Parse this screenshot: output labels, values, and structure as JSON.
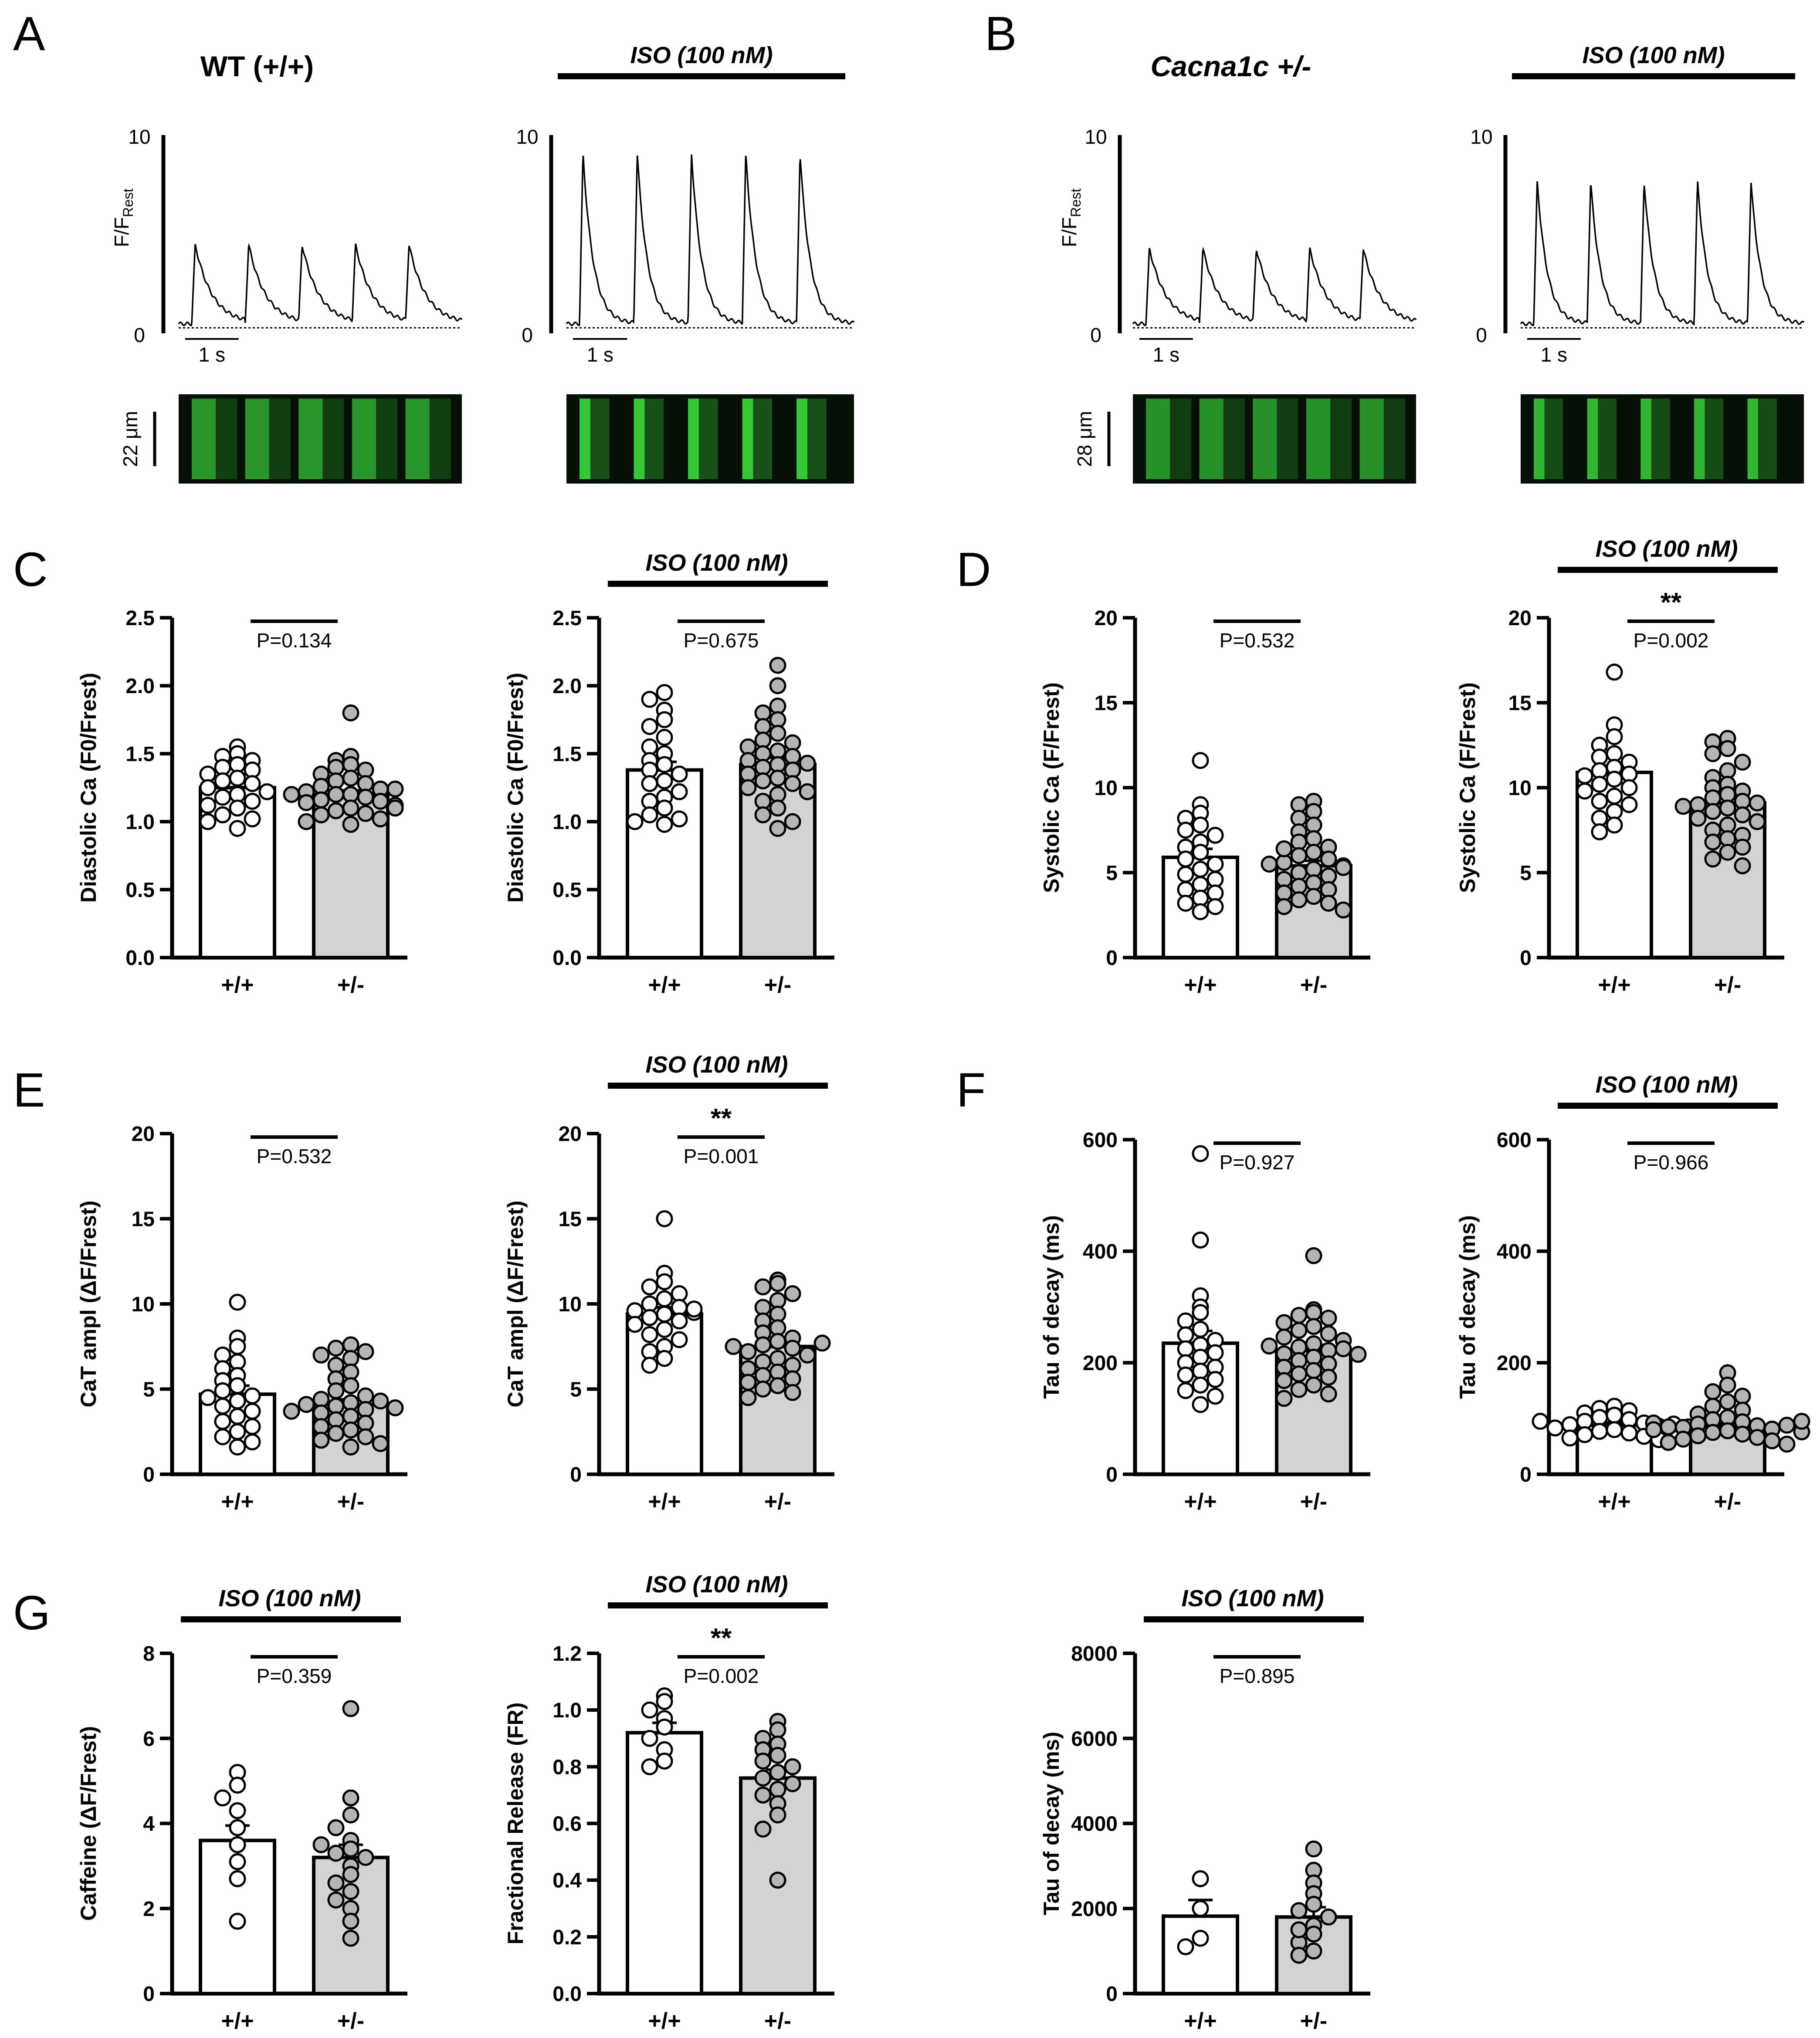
{
  "colors": {
    "wt_bar": "#ffffff",
    "het_bar": "#d3d3d3",
    "point_wt": "#ffffff",
    "point_het": "#b4b4b4",
    "stroke": "#000000",
    "linescan_bg": "#061006",
    "linescan_green": "#3cdc3c"
  },
  "iso_text": "ISO (100 nM)",
  "panel_letters": [
    "A",
    "B",
    "C",
    "D",
    "E",
    "F",
    "G"
  ],
  "traces": {
    "A": {
      "title": "WT (+/+)",
      "ylabel_main": "F/F",
      "ylabel_sub": "Rest",
      "scale_label": "1 s",
      "linescan_label": "22 μm",
      "y_ticks": [
        "10",
        "0"
      ],
      "ctrl_peak": 4.3,
      "iso_peak": 8.9,
      "ctrl_brightness": 0.55,
      "iso_brightness": 1.0
    },
    "B": {
      "title": "Cacna1c +/-",
      "ylabel_main": "F/F",
      "ylabel_sub": "Rest",
      "scale_label": "1 s",
      "linescan_label": "28 μm",
      "y_ticks": [
        "10",
        "0"
      ],
      "ctrl_peak": 4.1,
      "iso_peak": 7.5,
      "ctrl_brightness": 0.5,
      "iso_brightness": 0.85
    }
  },
  "chart_data": [
    {
      "type": "bar",
      "id": "C1",
      "iso": false,
      "ylabel": "Diastolic Ca (F0/Frest)",
      "ylim": [
        0,
        2.5
      ],
      "yticks": [
        "0.0",
        "0.5",
        "1.0",
        "1.5",
        "2.0",
        "2.5"
      ],
      "categories": [
        "+/+",
        "+/-"
      ],
      "values": [
        1.25,
        1.2
      ],
      "sem": [
        0.04,
        0.03
      ],
      "pvalue": "P=0.134",
      "stars": "",
      "points": [
        [
          1.55,
          1.5,
          1.48,
          1.45,
          1.42,
          1.4,
          1.38,
          1.35,
          1.32,
          1.3,
          1.28,
          1.25,
          1.22,
          1.2,
          1.18,
          1.15,
          1.12,
          1.1,
          1.05,
          1.02,
          1.0,
          0.95
        ],
        [
          1.8,
          1.48,
          1.45,
          1.42,
          1.4,
          1.38,
          1.35,
          1.32,
          1.3,
          1.28,
          1.26,
          1.24,
          1.22,
          1.2,
          1.2,
          1.18,
          1.16,
          1.15,
          1.14,
          1.12,
          1.1,
          1.08,
          1.06,
          1.05,
          1.02,
          1.0,
          0.98,
          1.2,
          1.24,
          1.1
        ]
      ]
    },
    {
      "type": "bar",
      "id": "C2",
      "iso": true,
      "ylabel": "Diastolic Ca (F0/Frest)",
      "ylim": [
        0,
        2.5
      ],
      "yticks": [
        "0.0",
        "0.5",
        "1.0",
        "1.5",
        "2.0",
        "2.5"
      ],
      "categories": [
        "+/+",
        "+/-"
      ],
      "values": [
        1.38,
        1.42
      ],
      "sem": [
        0.06,
        0.05
      ],
      "pvalue": "P=0.675",
      "stars": "",
      "points": [
        [
          1.95,
          1.9,
          1.82,
          1.75,
          1.7,
          1.62,
          1.55,
          1.5,
          1.45,
          1.42,
          1.38,
          1.35,
          1.3,
          1.28,
          1.22,
          1.18,
          1.15,
          1.1,
          1.05,
          1.02,
          1.0,
          0.98
        ],
        [
          2.15,
          2.0,
          1.85,
          1.8,
          1.75,
          1.7,
          1.65,
          1.6,
          1.58,
          1.55,
          1.52,
          1.5,
          1.48,
          1.45,
          1.42,
          1.4,
          1.38,
          1.35,
          1.32,
          1.3,
          1.28,
          1.25,
          1.22,
          1.2,
          1.15,
          1.1,
          1.05,
          1.0,
          0.95,
          1.43
        ]
      ]
    },
    {
      "type": "bar",
      "id": "D1",
      "iso": false,
      "ylabel": "Systolic Ca (F/Frest)",
      "ylim": [
        0,
        20
      ],
      "yticks": [
        "0",
        "5",
        "10",
        "15",
        "20"
      ],
      "categories": [
        "+/+",
        "+/-"
      ],
      "values": [
        5.9,
        5.4
      ],
      "sem": [
        0.5,
        0.3
      ],
      "pvalue": "P=0.532",
      "stars": "",
      "points": [
        [
          11.6,
          9.0,
          8.5,
          8.2,
          7.8,
          7.5,
          7.2,
          6.8,
          6.5,
          6.2,
          5.8,
          5.5,
          5.2,
          4.9,
          4.6,
          4.3,
          4.0,
          3.8,
          3.5,
          3.2,
          3.0,
          2.7
        ],
        [
          9.2,
          9.0,
          8.6,
          8.2,
          7.8,
          7.4,
          7.0,
          6.8,
          6.5,
          6.2,
          6.0,
          5.8,
          5.6,
          5.4,
          5.2,
          5.0,
          4.8,
          4.6,
          4.4,
          4.2,
          4.0,
          3.8,
          3.6,
          3.4,
          3.2,
          3.0,
          2.8,
          5.5,
          5.3,
          6.4
        ]
      ]
    },
    {
      "type": "bar",
      "id": "D2",
      "iso": true,
      "ylabel": "Systolic Ca (F/Frest)",
      "ylim": [
        0,
        20
      ],
      "yticks": [
        "0",
        "5",
        "10",
        "15",
        "20"
      ],
      "categories": [
        "+/+",
        "+/-"
      ],
      "values": [
        10.9,
        9.1
      ],
      "sem": [
        0.4,
        0.35
      ],
      "pvalue": "P=0.002",
      "stars": "**",
      "points": [
        [
          16.8,
          13.7,
          13.0,
          12.5,
          12.0,
          11.8,
          11.5,
          11.2,
          11.0,
          10.8,
          10.5,
          10.2,
          10.0,
          9.8,
          9.5,
          9.2,
          9.0,
          8.6,
          8.2,
          7.8,
          7.4,
          10.7
        ],
        [
          12.9,
          12.7,
          12.3,
          12.0,
          11.5,
          11.0,
          10.6,
          10.2,
          10.0,
          9.8,
          9.6,
          9.4,
          9.2,
          9.0,
          8.8,
          8.6,
          8.4,
          8.2,
          8.0,
          7.8,
          7.5,
          7.2,
          7.0,
          6.8,
          6.5,
          6.2,
          5.8,
          5.4,
          9.1,
          8.9
        ]
      ]
    },
    {
      "type": "bar",
      "id": "E1",
      "iso": false,
      "ylabel": "CaT ampl (ΔF/Frest)",
      "ylim": [
        0,
        20
      ],
      "yticks": [
        "0",
        "5",
        "10",
        "15",
        "20"
      ],
      "categories": [
        "+/+",
        "+/-"
      ],
      "values": [
        4.7,
        4.1
      ],
      "sem": [
        0.5,
        0.3
      ],
      "pvalue": "P=0.532",
      "stars": "",
      "points": [
        [
          10.1,
          8.0,
          7.5,
          7.0,
          6.6,
          6.2,
          5.8,
          5.5,
          5.2,
          4.9,
          4.6,
          4.3,
          4.0,
          3.7,
          3.4,
          3.1,
          2.8,
          2.5,
          2.2,
          1.9,
          1.6,
          4.5
        ],
        [
          7.6,
          7.4,
          7.2,
          7.0,
          6.8,
          6.4,
          6.0,
          5.6,
          5.2,
          4.9,
          4.6,
          4.4,
          4.2,
          4.0,
          3.8,
          3.6,
          3.4,
          3.2,
          3.0,
          2.8,
          2.6,
          2.4,
          2.2,
          2.0,
          1.8,
          1.6,
          4.3,
          4.1,
          3.9,
          3.7
        ]
      ]
    },
    {
      "type": "bar",
      "id": "E2",
      "iso": true,
      "ylabel": "CaT ampl (ΔF/Frest)",
      "ylim": [
        0,
        20
      ],
      "yticks": [
        "0",
        "5",
        "10",
        "15",
        "20"
      ],
      "categories": [
        "+/+",
        "+/-"
      ],
      "values": [
        9.4,
        7.5
      ],
      "sem": [
        0.4,
        0.35
      ],
      "pvalue": "P=0.001",
      "stars": "**",
      "points": [
        [
          15.0,
          11.8,
          11.3,
          11.0,
          10.6,
          10.3,
          10.0,
          9.8,
          9.6,
          9.4,
          9.2,
          9.0,
          8.8,
          8.5,
          8.2,
          7.9,
          7.5,
          7.2,
          6.8,
          6.4,
          9.5,
          9.7
        ],
        [
          11.4,
          11.2,
          11.0,
          10.6,
          10.2,
          9.8,
          9.4,
          9.0,
          8.6,
          8.3,
          8.0,
          7.8,
          7.6,
          7.4,
          7.2,
          7.0,
          6.8,
          6.6,
          6.4,
          6.2,
          6.0,
          5.8,
          5.6,
          5.4,
          5.2,
          5.0,
          4.8,
          4.5,
          7.5,
          7.7
        ]
      ]
    },
    {
      "type": "bar",
      "id": "F1",
      "iso": false,
      "ylabel": "Tau of decay (ms)",
      "ylim": [
        0,
        600
      ],
      "yticks": [
        "0",
        "200",
        "400",
        "600"
      ],
      "categories": [
        "+/+",
        "+/-"
      ],
      "values": [
        235,
        222
      ],
      "sem": [
        22,
        10
      ],
      "pvalue": "P=0.927",
      "stars": "",
      "points": [
        [
          575,
          420,
          320,
          300,
          290,
          275,
          260,
          250,
          240,
          232,
          225,
          218,
          210,
          200,
          192,
          185,
          178,
          170,
          160,
          150,
          140,
          125
        ],
        [
          392,
          295,
          290,
          285,
          280,
          272,
          265,
          258,
          252,
          246,
          240,
          234,
          228,
          222,
          216,
          210,
          204,
          198,
          192,
          186,
          180,
          174,
          168,
          160,
          152,
          144,
          136,
          225,
          230,
          215
        ]
      ]
    },
    {
      "type": "bar",
      "id": "F2",
      "iso": true,
      "ylabel": "Tau of decay (ms)",
      "ylim": [
        0,
        600
      ],
      "yticks": [
        "0",
        "200",
        "400",
        "600"
      ],
      "categories": [
        "+/+",
        "+/-"
      ],
      "values": [
        88,
        85
      ],
      "sem": [
        5,
        5
      ],
      "pvalue": "P=0.966",
      "stars": "",
      "points": [
        [
          122,
          118,
          114,
          110,
          106,
          102,
          98,
          95,
          92,
          89,
          86,
          83,
          80,
          77,
          74,
          71,
          68,
          65,
          62,
          90,
          95,
          85
        ],
        [
          182,
          160,
          148,
          140,
          130,
          122,
          115,
          108,
          102,
          98,
          94,
          90,
          87,
          84,
          81,
          78,
          75,
          72,
          69,
          66,
          63,
          60,
          57,
          54,
          85,
          88,
          92,
          80,
          76,
          95
        ]
      ]
    },
    {
      "type": "bar",
      "id": "G1",
      "iso": true,
      "ylabel": "Caffeine (ΔF/Frest)",
      "ylim": [
        0,
        8
      ],
      "yticks": [
        "0",
        "2",
        "4",
        "6",
        "8"
      ],
      "categories": [
        "+/+",
        "+/-"
      ],
      "values": [
        3.6,
        3.2
      ],
      "sem": [
        0.35,
        0.3
      ],
      "pvalue": "P=0.359",
      "stars": "",
      "points": [
        [
          5.2,
          4.9,
          4.6,
          4.3,
          3.9,
          3.5,
          3.1,
          2.7,
          1.7
        ],
        [
          6.7,
          4.6,
          4.2,
          3.9,
          3.6,
          3.4,
          3.3,
          3.2,
          3.0,
          2.8,
          2.6,
          2.4,
          2.2,
          2.0,
          1.7,
          1.3,
          3.5
        ]
      ]
    },
    {
      "type": "bar",
      "id": "G2",
      "iso": true,
      "ylabel": "Fractional Release (FR)",
      "ylim": [
        0,
        1.2
      ],
      "yticks": [
        "0.0",
        "0.2",
        "0.4",
        "0.6",
        "0.8",
        "1.0",
        "1.2"
      ],
      "categories": [
        "+/+",
        "+/-"
      ],
      "values": [
        0.92,
        0.76
      ],
      "sem": [
        0.035,
        0.03
      ],
      "pvalue": "P=0.002",
      "stars": "**",
      "points": [
        [
          1.05,
          1.03,
          1.0,
          0.97,
          0.94,
          0.9,
          0.86,
          0.82,
          0.8
        ],
        [
          0.96,
          0.93,
          0.9,
          0.88,
          0.86,
          0.84,
          0.82,
          0.8,
          0.78,
          0.76,
          0.74,
          0.72,
          0.7,
          0.67,
          0.63,
          0.58,
          0.4
        ]
      ]
    },
    {
      "type": "bar",
      "id": "G3",
      "iso": true,
      "ylabel": "Tau of decay (ms)",
      "ylim": [
        0,
        8000
      ],
      "yticks": [
        "0",
        "2000",
        "4000",
        "6000",
        "8000"
      ],
      "categories": [
        "+/+",
        "+/-"
      ],
      "values": [
        1820,
        1800
      ],
      "sem": [
        380,
        230
      ],
      "pvalue": "P=0.895",
      "stars": "",
      "points": [
        [
          2700,
          2000,
          1300,
          1100
        ],
        [
          3400,
          2900,
          2600,
          2350,
          2100,
          1950,
          1800,
          1600,
          1400,
          1200,
          1000,
          900,
          1500
        ]
      ]
    }
  ]
}
